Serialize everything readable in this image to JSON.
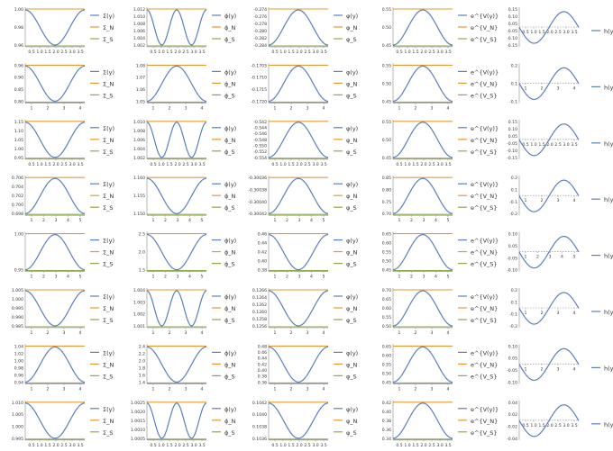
{
  "figure": {
    "layout": "8 rows x 5 columns grid of small line plots with legends",
    "colors": {
      "blue": "#5b7fbf",
      "orange": "#e49a32",
      "green": "#8bab4b",
      "axis": "#888888",
      "text": "#333333"
    }
  },
  "legends": {
    "col1": [
      {
        "label": "Σ(y)",
        "color": "#5b7fbf"
      },
      {
        "label": "Σ_N",
        "color": "#e49a32"
      },
      {
        "label": "Σ_S",
        "color": "#8bab4b"
      }
    ],
    "col2": [
      {
        "label": "ϕ(y)",
        "color": "#5b7fbf"
      },
      {
        "label": "ϕ_N",
        "color": "#e49a32"
      },
      {
        "label": "ϕ_S",
        "color": "#8bab4b"
      }
    ],
    "col3": [
      {
        "label": "φ(y)",
        "color": "#5b7fbf"
      },
      {
        "label": "φ_N",
        "color": "#e49a32"
      },
      {
        "label": "φ_S",
        "color": "#8bab4b"
      }
    ],
    "col4": [
      {
        "label": "e^{V(y)}",
        "color": "#5b7fbf"
      },
      {
        "label": "e^{V_N}",
        "color": "#e49a32"
      },
      {
        "label": "e^{V_S}",
        "color": "#8bab4b"
      }
    ],
    "col5": [
      {
        "label": "h(y)",
        "color": "#5b7fbf"
      }
    ]
  },
  "chart_data": [
    {
      "row": 1,
      "col": 1,
      "type": "line",
      "x": [
        0,
        3.6
      ],
      "xticks": [
        "0.5",
        "1.0",
        "1.5",
        "2.0",
        "2.5",
        "3.0",
        "3.5"
      ],
      "ylim": [
        0.94,
        1.02
      ],
      "yticks": [
        "1.00",
        "0.98",
        "0.96"
      ],
      "shape": "valley",
      "lines": {
        "orange": 1.02,
        "green": 0.94
      }
    },
    {
      "row": 1,
      "col": 2,
      "type": "line",
      "x": [
        0,
        3.6
      ],
      "xticks": [
        "0.5",
        "1.0",
        "1.5",
        "2.0",
        "2.5",
        "3.0",
        "3.5"
      ],
      "ylim": [
        1.0,
        1.012
      ],
      "yticks": [
        "1.012",
        "1.010",
        "1.008",
        "1.006",
        "1.004",
        "1.002"
      ],
      "shape": "double-well",
      "lines": {
        "orange": 1.009,
        "green": 1.0
      }
    },
    {
      "row": 1,
      "col": 3,
      "type": "line",
      "x": [
        0,
        3.6
      ],
      "xticks": [
        "0.5",
        "1.0",
        "1.5",
        "2.0",
        "2.5",
        "3.0",
        "3.5"
      ],
      "ylim": [
        -0.285,
        -0.2735
      ],
      "yticks": [
        "-0.274",
        "-0.276",
        "-0.278",
        "-0.280",
        "-0.282",
        "-0.284"
      ],
      "shape": "bump",
      "lines": {
        "orange": -0.2738,
        "green": -0.285
      }
    },
    {
      "row": 1,
      "col": 4,
      "type": "line",
      "x": [
        0,
        3.6
      ],
      "xticks": [
        "0.5",
        "1.0",
        "1.5",
        "2.0",
        "2.5",
        "3.0",
        "3.5"
      ],
      "ylim": [
        0.41,
        0.56
      ],
      "yticks": [
        "0.55",
        "0.50",
        "0.45"
      ],
      "shape": "bump",
      "lines": {
        "orange": 0.55,
        "green": 0.41
      }
    },
    {
      "row": 1,
      "col": 5,
      "type": "line",
      "x": [
        0,
        3.6
      ],
      "xticks": [
        "0.5",
        "1.0",
        "1.5",
        "2.0",
        "2.5",
        "3.0",
        "3.5"
      ],
      "ylim": [
        -0.16,
        0.16
      ],
      "yticks": [
        "0.15",
        "0.10",
        "0.05",
        "-0.05",
        "-0.10",
        "-0.15"
      ],
      "shape": "odd"
    },
    {
      "row": 2,
      "col": 1,
      "type": "line",
      "x": [
        0,
        5.1
      ],
      "xticks": [
        "1",
        "2",
        "3",
        "4"
      ],
      "ylim": [
        0.75,
        0.965
      ],
      "yticks": [
        "0.96",
        "0.90",
        "0.85",
        "0.80"
      ],
      "shape": "valley",
      "lines": {
        "orange": 0.96,
        "green": 0.75
      }
    },
    {
      "row": 2,
      "col": 2,
      "type": "line",
      "x": [
        0,
        5.1
      ],
      "xticks": [
        "1",
        "2",
        "3",
        "4"
      ],
      "ylim": [
        1.04,
        1.08
      ],
      "yticks": [
        "1.08",
        "1.07",
        "1.06",
        "1.05"
      ],
      "shape": "bump",
      "lines": {
        "orange": 1.08,
        "green": 1.04
      }
    },
    {
      "row": 2,
      "col": 3,
      "type": "line",
      "x": [
        0,
        5.1
      ],
      "xticks": [
        "1",
        "2",
        "3",
        "4"
      ],
      "ylim": [
        -0.1722,
        -0.1703
      ],
      "yticks": [
        "-0.1705",
        "-0.1710",
        "-0.1715",
        "-0.1720"
      ],
      "shape": "bump",
      "lines": {
        "orange": -0.1703,
        "green": -0.1722
      }
    },
    {
      "row": 2,
      "col": 4,
      "type": "line",
      "x": [
        0,
        5.1
      ],
      "xticks": [
        "1",
        "2",
        "3",
        "4"
      ],
      "ylim": [
        0.41,
        0.56
      ],
      "yticks": [
        "0.55",
        "0.50",
        "0.45"
      ],
      "shape": "bump",
      "lines": {
        "orange": 0.56,
        "green": 0.41
      }
    },
    {
      "row": 2,
      "col": 5,
      "type": "line",
      "x": [
        0,
        5.1
      ],
      "xticks": [
        "1",
        "2",
        "3",
        "4"
      ],
      "ylim": [
        -0.2,
        0.2
      ],
      "yticks": [
        "0.2",
        "0.1",
        "-0.1"
      ],
      "shape": "odd"
    },
    {
      "row": 3,
      "col": 1,
      "type": "line",
      "x": [
        0,
        3.6
      ],
      "xticks": [
        "0.5",
        "1.0",
        "1.5",
        "2.0",
        "2.5",
        "3.0",
        "3.5"
      ],
      "ylim": [
        0.93,
        1.165
      ],
      "yticks": [
        "1.15",
        "1.10",
        "1.05",
        "1.00",
        "0.95"
      ],
      "shape": "valley",
      "lines": {
        "orange": 1.16,
        "green": 0.93
      }
    },
    {
      "row": 3,
      "col": 2,
      "type": "line",
      "x": [
        0,
        3.6
      ],
      "xticks": [
        "0.5",
        "1.0",
        "1.5",
        "2.0",
        "2.5",
        "3.0",
        "3.5"
      ],
      "ylim": [
        1.0,
        1.011
      ],
      "yticks": [
        "1.010",
        "1.008",
        "1.006",
        "1.004",
        "1.002"
      ],
      "shape": "double-well",
      "lines": {
        "orange": 1.008,
        "green": 1.0
      }
    },
    {
      "row": 3,
      "col": 3,
      "type": "line",
      "x": [
        0,
        3.6
      ],
      "xticks": [
        "0.5",
        "1.0",
        "1.5",
        "2.0",
        "2.5",
        "3.0",
        "3.5"
      ],
      "ylim": [
        -0.555,
        -0.542
      ],
      "yticks": [
        "-0.542",
        "-0.544",
        "-0.546",
        "-0.548",
        "-0.550",
        "-0.552",
        "-0.554"
      ],
      "shape": "bump",
      "lines": {
        "orange": -0.5425,
        "green": -0.555
      }
    },
    {
      "row": 3,
      "col": 4,
      "type": "line",
      "x": [
        0,
        3.6
      ],
      "xticks": [
        "0.5",
        "1.0",
        "1.5",
        "2.0",
        "2.5",
        "3.0",
        "3.5"
      ],
      "ylim": [
        0.41,
        0.56
      ],
      "yticks": [
        "0.55",
        "0.50",
        "0.45"
      ],
      "shape": "bump",
      "lines": {
        "orange": 0.56,
        "green": 0.41
      }
    },
    {
      "row": 3,
      "col": 5,
      "type": "line",
      "x": [
        0,
        3.6
      ],
      "xticks": [
        "0.5",
        "1.0",
        "1.5",
        "2.0",
        "2.5",
        "3.0",
        "3.5"
      ],
      "ylim": [
        -0.18,
        0.18
      ],
      "yticks": [
        "0.15",
        "0.10",
        "0.05",
        "-0.05",
        "-0.10",
        "-0.15"
      ],
      "shape": "odd"
    },
    {
      "row": 4,
      "col": 1,
      "type": "line",
      "x": [
        0,
        5.1
      ],
      "xticks": [
        "1",
        "2",
        "3",
        "4",
        "5"
      ],
      "ylim": [
        0.6975,
        0.7065
      ],
      "yticks": [
        "0.706",
        "0.704",
        "0.702",
        "0.700",
        "0.698"
      ],
      "shape": "bump",
      "lines": {
        "orange": 0.7062,
        "green": 0.6978
      }
    },
    {
      "row": 4,
      "col": 2,
      "type": "line",
      "x": [
        0,
        5.1
      ],
      "xticks": [
        "1",
        "2",
        "3",
        "4",
        "5"
      ],
      "ylim": [
        1.149,
        1.1615
      ],
      "yticks": [
        "1.160",
        "1.155",
        "1.150"
      ],
      "shape": "valley",
      "lines": {
        "orange": 1.161,
        "green": 1.1495
      }
    },
    {
      "row": 4,
      "col": 3,
      "type": "line",
      "x": [
        0,
        5.1
      ],
      "xticks": [
        "1",
        "2",
        "3",
        "4",
        "5"
      ],
      "ylim": [
        -0.30043,
        -0.30033
      ],
      "yticks": [
        "-0.30036",
        "-0.30038",
        "-0.30040",
        "-0.30042"
      ],
      "shape": "bump",
      "lines": {
        "orange": -0.30034,
        "green": -0.30043
      }
    },
    {
      "row": 4,
      "col": 4,
      "type": "line",
      "x": [
        0,
        5.1
      ],
      "xticks": [
        "1",
        "2",
        "3",
        "4",
        "5"
      ],
      "ylim": [
        0.68,
        0.86
      ],
      "yticks": [
        "0.85",
        "0.80",
        "0.75",
        "0.70"
      ],
      "shape": "bump",
      "lines": {
        "orange": 0.85,
        "green": 0.68
      }
    },
    {
      "row": 4,
      "col": 5,
      "type": "line",
      "x": [
        0,
        5.1
      ],
      "xticks": [
        "1",
        "2",
        "3",
        "4"
      ],
      "ylim": [
        -0.22,
        0.22
      ],
      "yticks": [
        "0.2",
        "0.1",
        "-0.1",
        "-0.2"
      ],
      "shape": "odd"
    },
    {
      "row": 5,
      "col": 1,
      "type": "line",
      "x": [
        0,
        5.1
      ],
      "xticks": [
        "1",
        "2",
        "3",
        "4",
        "5"
      ],
      "ylim": [
        0.925,
        1.002
      ],
      "yticks": [
        "1.00",
        "0.95"
      ],
      "shape": "bump",
      "lines": {
        "orange": 1.001,
        "green": 0.926
      }
    },
    {
      "row": 5,
      "col": 2,
      "type": "line",
      "x": [
        0,
        5.1
      ],
      "xticks": [
        "1",
        "2",
        "3",
        "4",
        "5"
      ],
      "ylim": [
        1.45,
        3.2
      ],
      "yticks": [
        "2.5",
        "2.0",
        "1.5"
      ],
      "shape": "valley",
      "lines": {
        "orange": 3.15,
        "green": 1.47
      }
    },
    {
      "row": 5,
      "col": 3,
      "type": "line",
      "x": [
        0,
        5.1
      ],
      "xticks": [
        "1",
        "2",
        "3",
        "4",
        "5"
      ],
      "ylim": [
        0.37,
        0.47
      ],
      "yticks": [
        "0.46",
        "0.44",
        "0.42",
        "0.40",
        "0.38"
      ],
      "shape": "valley",
      "lines": {
        "orange": 0.465,
        "green": 0.372
      }
    },
    {
      "row": 5,
      "col": 4,
      "type": "line",
      "x": [
        0,
        5.1
      ],
      "xticks": [
        "1",
        "2",
        "3",
        "4",
        "5"
      ],
      "ylim": [
        0.4,
        0.7
      ],
      "yticks": [
        "0.65",
        "0.60",
        "0.55",
        "0.50",
        "0.45"
      ],
      "shape": "bump",
      "lines": {
        "orange": 0.69,
        "green": 0.4
      }
    },
    {
      "row": 5,
      "col": 5,
      "type": "line",
      "x": [
        0,
        5.1
      ],
      "xticks": [
        "1",
        "2",
        "3",
        "4",
        "5"
      ],
      "ylim": [
        -0.12,
        0.12
      ],
      "yticks": [
        "0.10",
        "0.05",
        "-0.05",
        "-0.10"
      ],
      "shape": "odd"
    },
    {
      "row": 6,
      "col": 1,
      "type": "line",
      "x": [
        0,
        5.1
      ],
      "xticks": [
        "1",
        "2",
        "3",
        "4"
      ],
      "ylim": [
        0.903,
        1.006
      ],
      "yticks": [
        "1.005",
        "1.000",
        "0.995",
        "0.990",
        "0.985"
      ],
      "shape": "valley",
      "lines": {
        "orange": 1.005,
        "green": 0.904
      }
    },
    {
      "row": 6,
      "col": 2,
      "type": "line",
      "x": [
        0,
        5.1
      ],
      "xticks": [
        "1",
        "2",
        "3",
        "4"
      ],
      "ylim": [
        1.0,
        1.0045
      ],
      "yticks": [
        "1.004",
        "1.003",
        "1.002",
        "1.001"
      ],
      "shape": "double-well",
      "lines": {
        "orange": 1.003,
        "green": 1.0
      }
    },
    {
      "row": 6,
      "col": 3,
      "type": "line",
      "x": [
        0,
        5.1
      ],
      "xticks": [
        "1",
        "2",
        "3",
        "4"
      ],
      "ylim": [
        0.1253,
        0.12665
      ],
      "yticks": [
        "0.1266",
        "0.1264",
        "0.1262",
        "0.1260",
        "0.1258",
        "0.1256"
      ],
      "shape": "valley",
      "lines": {
        "orange": 0.1266,
        "green": 0.1254
      }
    },
    {
      "row": 6,
      "col": 4,
      "type": "line",
      "x": [
        0,
        5.1
      ],
      "xticks": [
        "1",
        "2",
        "3",
        "4"
      ],
      "ylim": [
        0.46,
        0.72
      ],
      "yticks": [
        "0.70",
        "0.65",
        "0.60",
        "0.55",
        "0.50"
      ],
      "shape": "bump",
      "lines": {
        "orange": 0.71,
        "green": 0.47
      }
    },
    {
      "row": 6,
      "col": 5,
      "type": "line",
      "x": [
        0,
        5.1
      ],
      "xticks": [
        "1",
        "2",
        "3",
        "4"
      ],
      "ylim": [
        -0.22,
        0.22
      ],
      "yticks": [
        "0.2",
        "0.1",
        "-0.1",
        "-0.2"
      ],
      "shape": "odd"
    },
    {
      "row": 7,
      "col": 1,
      "type": "line",
      "x": [
        0,
        5.1
      ],
      "xticks": [
        "1",
        "2",
        "3",
        "4"
      ],
      "ylim": [
        0.935,
        1.045
      ],
      "yticks": [
        "1.04",
        "1.02",
        "1.00",
        "0.98",
        "0.96",
        "0.94"
      ],
      "shape": "bump",
      "lines": {
        "orange": 1.042,
        "green": 0.937
      }
    },
    {
      "row": 7,
      "col": 2,
      "type": "line",
      "x": [
        0,
        5.1
      ],
      "xticks": [
        "1",
        "2",
        "3",
        "4"
      ],
      "ylim": [
        1.3,
        2.45
      ],
      "yticks": [
        "2.4",
        "2.2",
        "2.0",
        "1.8",
        "1.6",
        "1.4"
      ],
      "shape": "valley",
      "lines": {
        "orange": 2.4,
        "green": 1.32
      }
    },
    {
      "row": 7,
      "col": 3,
      "type": "line",
      "x": [
        0,
        5.1
      ],
      "xticks": [
        "1",
        "2",
        "3",
        "4"
      ],
      "ylim": [
        0.355,
        0.485
      ],
      "yticks": [
        "0.48",
        "0.46",
        "0.44",
        "0.42",
        "0.40",
        "0.38",
        "0.36"
      ],
      "shape": "valley",
      "lines": {
        "orange": 0.48,
        "green": 0.357
      }
    },
    {
      "row": 7,
      "col": 4,
      "type": "line",
      "x": [
        0,
        5.1
      ],
      "xticks": [
        "1",
        "2",
        "3",
        "4"
      ],
      "ylim": [
        0.4,
        0.7
      ],
      "yticks": [
        "0.65",
        "0.60",
        "0.55",
        "0.50",
        "0.45"
      ],
      "shape": "bump",
      "lines": {
        "orange": 0.69,
        "green": 0.4
      }
    },
    {
      "row": 7,
      "col": 5,
      "type": "line",
      "x": [
        0,
        5.1
      ],
      "xticks": [
        "1",
        "2",
        "3",
        "4"
      ],
      "ylim": [
        -0.12,
        0.12
      ],
      "yticks": [
        "0.10",
        "0.05",
        "-0.05",
        "-0.10"
      ],
      "shape": "odd"
    },
    {
      "row": 8,
      "col": 1,
      "type": "line",
      "x": [
        0,
        3.6
      ],
      "xticks": [
        "0.5",
        "1.0",
        "1.5",
        "2.0",
        "2.5",
        "3.0",
        "3.5"
      ],
      "ylim": [
        0.9935,
        1.0115
      ],
      "yticks": [
        "1.010",
        "1.005",
        "1.000",
        "0.995"
      ],
      "shape": "valley",
      "lines": {
        "orange": 1.011,
        "green": 0.994
      }
    },
    {
      "row": 8,
      "col": 2,
      "type": "line",
      "x": [
        0,
        3.6
      ],
      "xticks": [
        "0.5",
        "1.0",
        "1.5",
        "2.0",
        "2.5",
        "3.0",
        "3.5"
      ],
      "ylim": [
        1.0,
        1.0026
      ],
      "yticks": [
        "1.0025",
        "1.0020",
        "1.0015",
        "1.0010",
        "1.0005"
      ],
      "shape": "double-well",
      "lines": {
        "orange": 1.0017,
        "green": 1.0
      }
    },
    {
      "row": 8,
      "col": 3,
      "type": "line",
      "x": [
        0,
        3.6
      ],
      "xticks": [
        "0.5",
        "1.0",
        "1.5",
        "2.0",
        "2.5",
        "3.0",
        "3.5"
      ],
      "ylim": [
        0.10345,
        0.10425
      ],
      "yticks": [
        "0.1042",
        "0.1040",
        "0.1038",
        "0.1036"
      ],
      "shape": "valley",
      "lines": {
        "orange": 0.1042,
        "green": 0.1035
      }
    },
    {
      "row": 8,
      "col": 4,
      "type": "line",
      "x": [
        0,
        3.6
      ],
      "xticks": [
        "0.5",
        "1.0",
        "1.5",
        "2.0",
        "2.5",
        "3.0",
        "3.5"
      ],
      "ylim": [
        0.335,
        0.425
      ],
      "yticks": [
        "0.42",
        "0.40",
        "0.38",
        "0.36",
        "0.34"
      ],
      "shape": "bump",
      "lines": {
        "orange": 0.42,
        "green": 0.338
      }
    },
    {
      "row": 8,
      "col": 5,
      "type": "line",
      "x": [
        0,
        3.6
      ],
      "xticks": [
        "0.5",
        "1.0",
        "1.5",
        "2.0",
        "2.5",
        "3.0",
        "3.5"
      ],
      "ylim": [
        -0.045,
        0.045
      ],
      "yticks": [
        "0.04",
        "0.02",
        "-0.02",
        "-0.04"
      ],
      "shape": "odd"
    }
  ]
}
